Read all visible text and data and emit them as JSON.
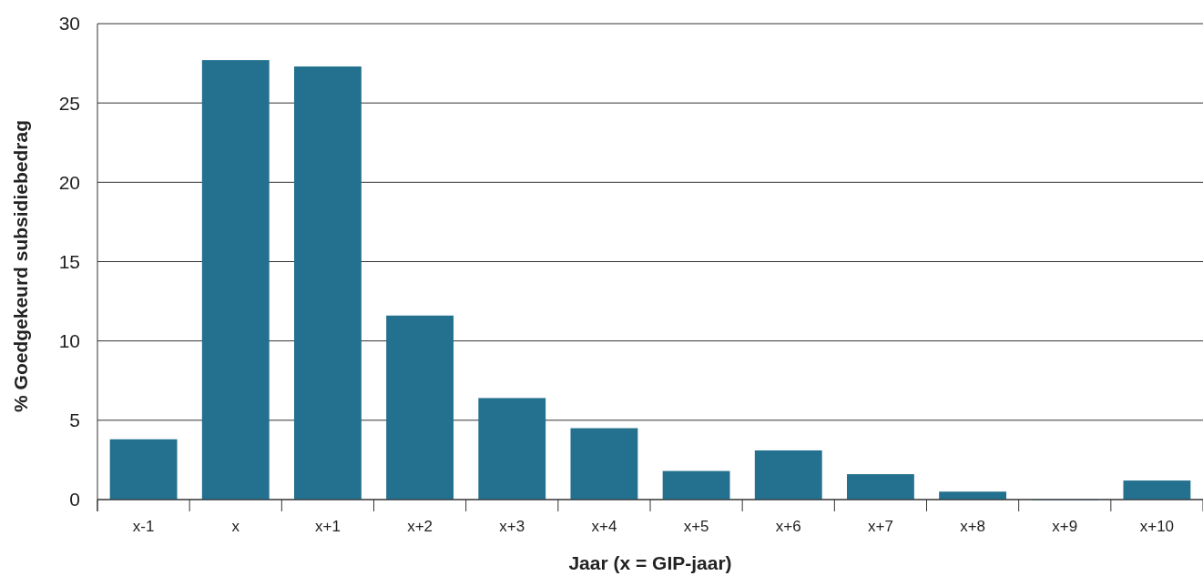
{
  "chart_data": {
    "type": "bar",
    "xlabel": "Jaar (x = GIP-jaar)",
    "ylabel": "% Goedgekeurd subsidiebedrag",
    "categories": [
      "x-1",
      "x",
      "x+1",
      "x+2",
      "x+3",
      "x+4",
      "x+5",
      "x+6",
      "x+7",
      "x+8",
      "x+9",
      "x+10"
    ],
    "values": [
      3.8,
      27.7,
      27.3,
      11.6,
      6.4,
      4.5,
      1.8,
      3.1,
      1.6,
      0.5,
      0,
      1.2
    ],
    "color": "#23718f",
    "ylim": [
      0,
      30
    ],
    "yticks": [
      0,
      5,
      10,
      15,
      20,
      25,
      30
    ],
    "grid": "y"
  }
}
